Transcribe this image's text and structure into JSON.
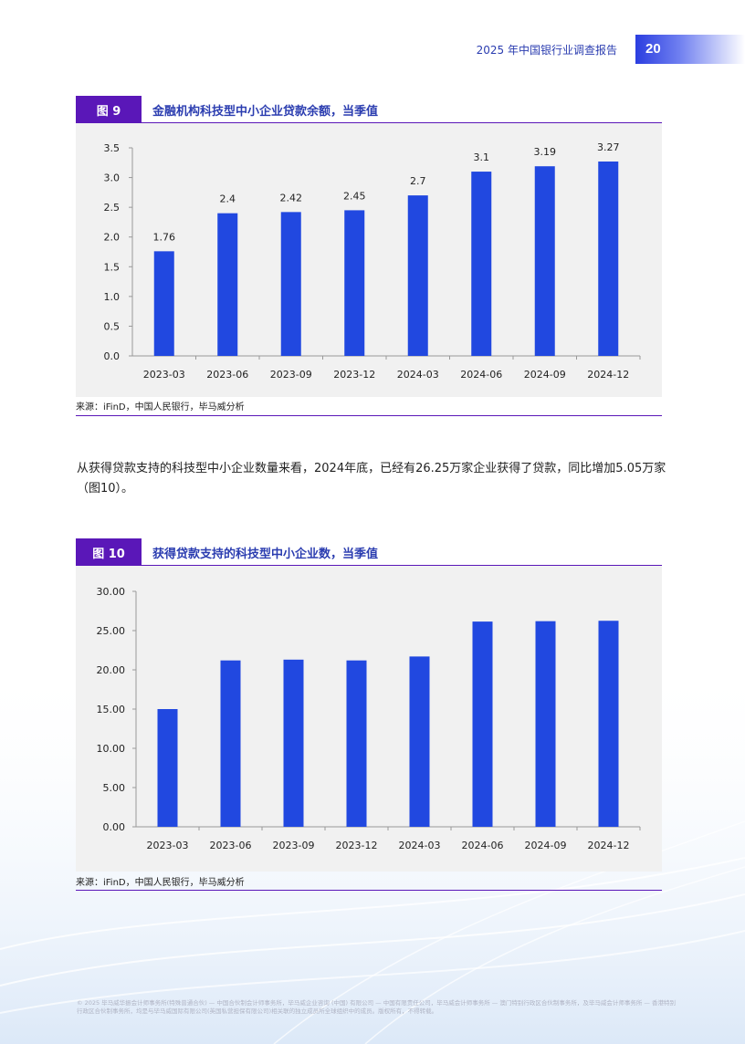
{
  "header": {
    "title": "2025 年中国银行业调查报告",
    "page_number": "20"
  },
  "figures": [
    {
      "tag": "图 9",
      "title": "金融机构科技型中小企业贷款余额，当季值",
      "source": "来源：iFinD，中国人民银行，毕马威分析"
    },
    {
      "tag": "图 10",
      "title": "获得贷款支持的科技型中小企业数，当季值",
      "source": "来源：iFinD，中国人民银行，毕马威分析"
    }
  ],
  "paragraph": "从获得贷款支持的科技型中小企业数量来看，2024年底，已经有26.25万家企业获得了贷款，同比增加5.05万家（图10）。",
  "footer": "© 2025 毕马威华振会计师事务所(特殊普通合伙) — 中国合伙制会计师事务所，毕马威企业咨询 (中国) 有限公司 — 中国有限责任公司，毕马威会计师事务所 — 澳门特别行政区合伙制事务所，及毕马威会计师事务所 — 香港特别行政区合伙制事务所，均是与毕马威国际有限公司(英国私营担保有限公司)相关联的独立成员所全球组织中的成员。版权所有，不得转载。",
  "colors": {
    "bar": "#2148e0",
    "accent": "#5a17b8",
    "title": "#2b3db0"
  },
  "chart_data": [
    {
      "type": "bar",
      "categories": [
        "2023-03",
        "2023-06",
        "2023-09",
        "2023-12",
        "2024-03",
        "2024-06",
        "2024-09",
        "2024-12"
      ],
      "values": [
        1.76,
        2.4,
        2.42,
        2.45,
        2.7,
        3.1,
        3.19,
        3.27
      ],
      "data_labels": [
        "1.76",
        "2.4",
        "2.42",
        "2.45",
        "2.7",
        "3.1",
        "3.19",
        "3.27"
      ],
      "yticks": [
        "0.0",
        "0.5",
        "1.0",
        "1.5",
        "2.0",
        "2.5",
        "3.0",
        "3.5"
      ],
      "ylim": [
        0,
        3.5
      ],
      "xlabel": "",
      "ylabel": ""
    },
    {
      "type": "bar",
      "categories": [
        "2023-03",
        "2023-06",
        "2023-09",
        "2023-12",
        "2024-03",
        "2024-06",
        "2024-09",
        "2024-12"
      ],
      "values": [
        15.0,
        21.2,
        21.3,
        21.2,
        21.7,
        26.15,
        26.2,
        26.25
      ],
      "data_labels": [],
      "yticks": [
        "0.00",
        "5.00",
        "10.00",
        "15.00",
        "20.00",
        "25.00",
        "30.00"
      ],
      "ylim": [
        0,
        30
      ],
      "xlabel": "",
      "ylabel": ""
    }
  ]
}
